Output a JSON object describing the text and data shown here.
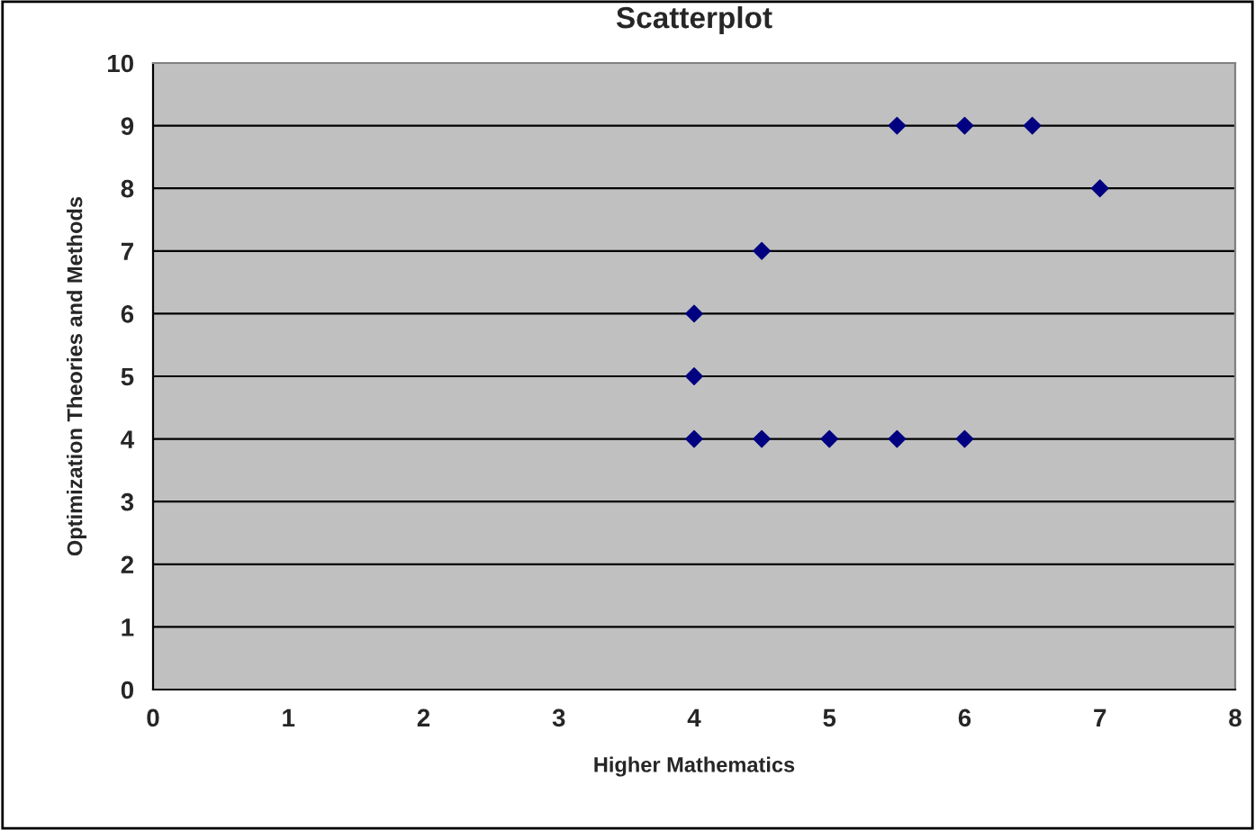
{
  "chart_data": {
    "type": "scatter",
    "title": "Scatterplot",
    "xlabel": "Higher Mathematics",
    "ylabel": "Optimization Theories and Methods",
    "x": [
      4,
      4,
      4,
      4.5,
      4.5,
      5,
      5.5,
      5.5,
      6,
      6,
      6.5,
      7
    ],
    "values": [
      4,
      5,
      6,
      4,
      7,
      4,
      4,
      9,
      4,
      9,
      9,
      8
    ],
    "color": "#000080",
    "marker": "diamond",
    "grid": "y",
    "legend": false,
    "xlim": [
      0,
      8
    ],
    "xticks": [
      0,
      1,
      2,
      3,
      4,
      5,
      6,
      7,
      8
    ],
    "ylim": [
      0,
      10
    ],
    "yticks": [
      0,
      1,
      2,
      3,
      4,
      5,
      6,
      7,
      8,
      9,
      10
    ]
  }
}
